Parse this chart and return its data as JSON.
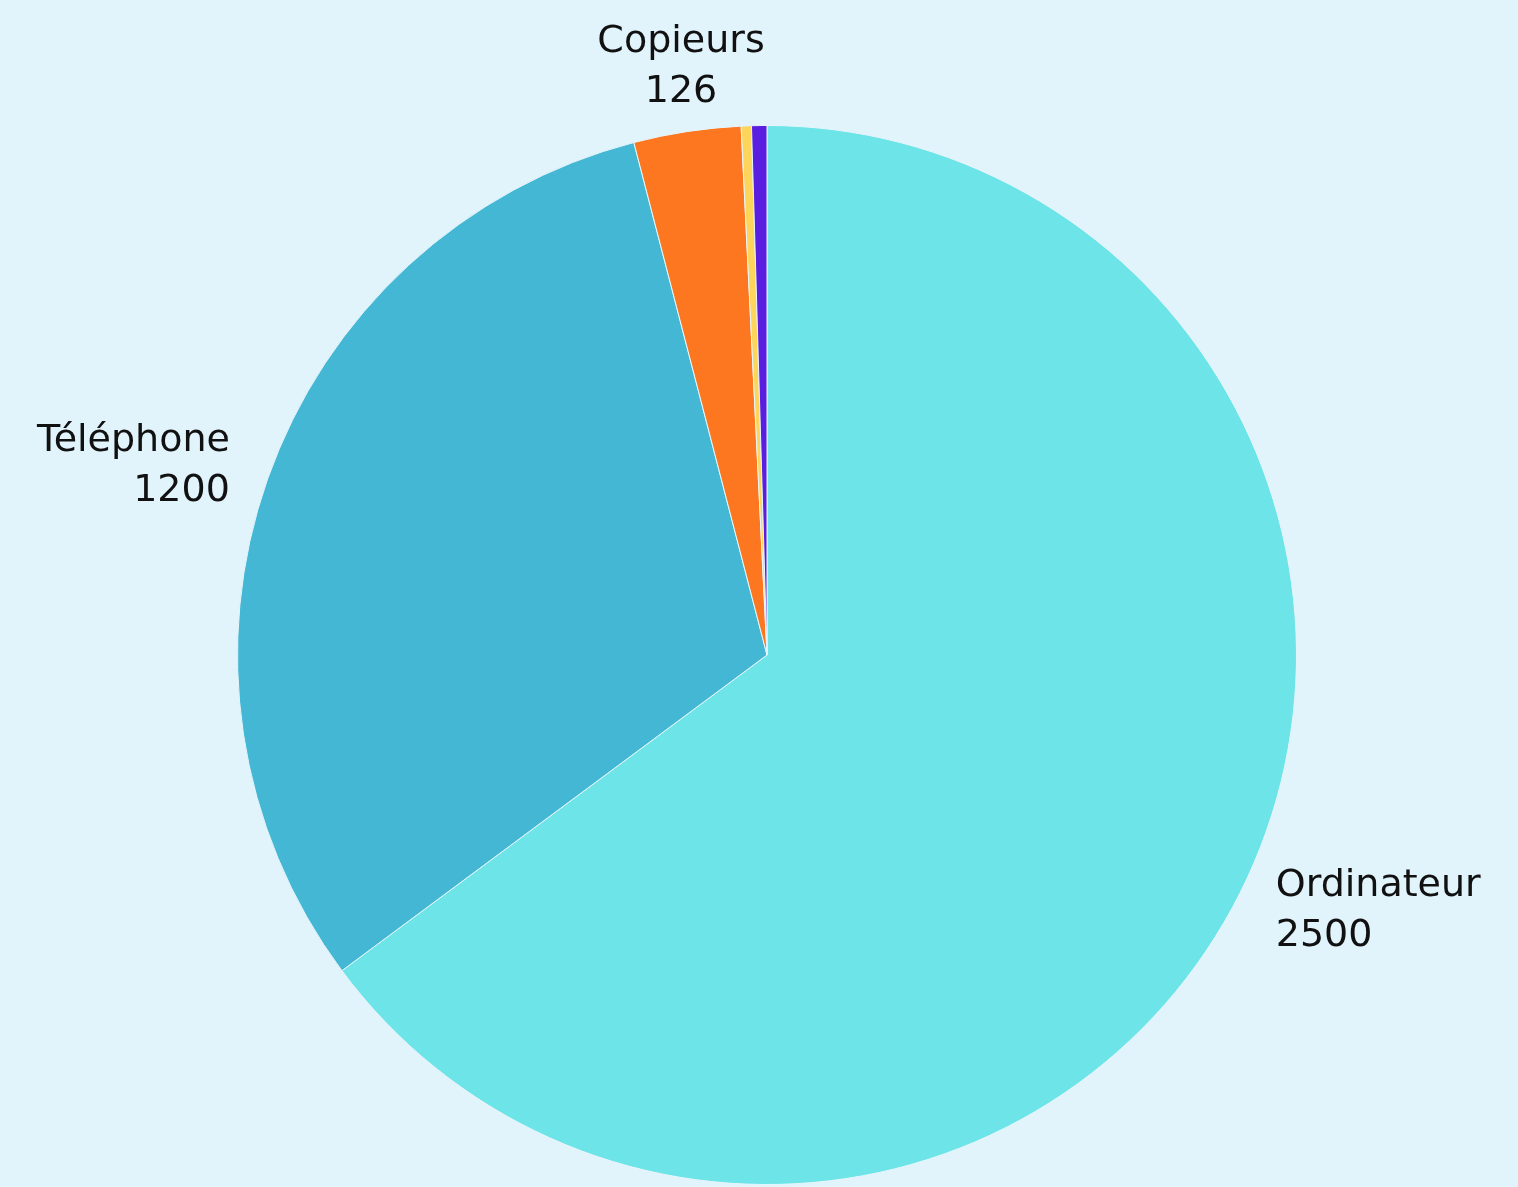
{
  "chart_data": {
    "type": "pie",
    "categories": [
      "Ordinateur",
      "Téléphone",
      "Copieurs",
      null,
      null
    ],
    "values": [
      2500,
      1200,
      126,
      12,
      18
    ],
    "colors": [
      "#6ce4e8",
      "#43b7d4",
      "#fc7720",
      "#fdd55b",
      "#5a1ee0"
    ],
    "value_labels": [
      "2500",
      "1200",
      "126",
      null,
      null
    ]
  }
}
